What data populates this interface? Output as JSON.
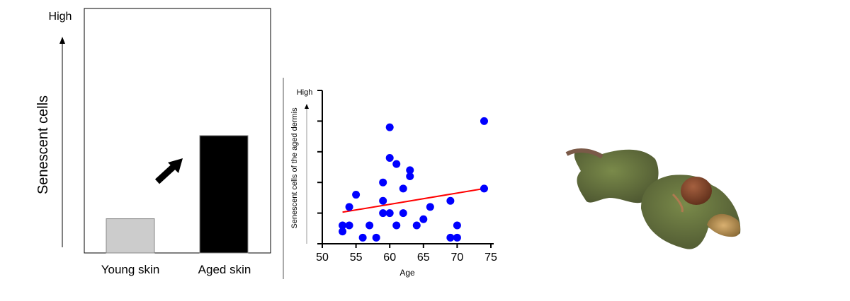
{
  "chart_data": [
    {
      "type": "bar",
      "ylabel": "Senescent cells",
      "y_high_label": "High",
      "categories": [
        "Young skin",
        "Aged skin"
      ],
      "values": [
        0.14,
        0.48
      ],
      "ylim": [
        0,
        1
      ],
      "colors": [
        "#cccccc",
        "#000000"
      ],
      "annotation": "increase-arrow",
      "grid": false
    },
    {
      "type": "scatter",
      "xlabel": "Age",
      "ylabel": "Senescent cells of the aged dermis",
      "y_high_label": "High",
      "xlim": [
        50,
        75
      ],
      "ylim": [
        0,
        5
      ],
      "xticks": [
        "50",
        "55",
        "60",
        "65",
        "70",
        "75"
      ],
      "point_color": "#0000ff",
      "trend_color": "#ff0000",
      "points": [
        [
          53,
          0.6
        ],
        [
          53,
          0.4
        ],
        [
          54,
          0.6
        ],
        [
          54,
          1.2
        ],
        [
          55,
          1.6
        ],
        [
          56,
          0.2
        ],
        [
          57,
          0.6
        ],
        [
          58,
          0.2
        ],
        [
          59,
          2.0
        ],
        [
          59,
          1.4
        ],
        [
          59,
          1.0
        ],
        [
          60,
          1.0
        ],
        [
          60,
          2.8
        ],
        [
          60,
          3.8
        ],
        [
          61,
          2.6
        ],
        [
          61,
          0.6
        ],
        [
          62,
          1.8
        ],
        [
          62,
          1.0
        ],
        [
          63,
          2.4
        ],
        [
          63,
          2.2
        ],
        [
          64,
          0.6
        ],
        [
          65,
          0.8
        ],
        [
          66,
          1.2
        ],
        [
          69,
          1.4
        ],
        [
          69,
          0.2
        ],
        [
          70,
          0.6
        ],
        [
          70,
          0.2
        ],
        [
          74,
          4.0
        ],
        [
          74,
          1.8
        ]
      ],
      "trend_line": [
        [
          53,
          1.03
        ],
        [
          74,
          1.8
        ]
      ],
      "grid": false
    }
  ],
  "photo": {
    "subject": "seed-pods-photo"
  }
}
